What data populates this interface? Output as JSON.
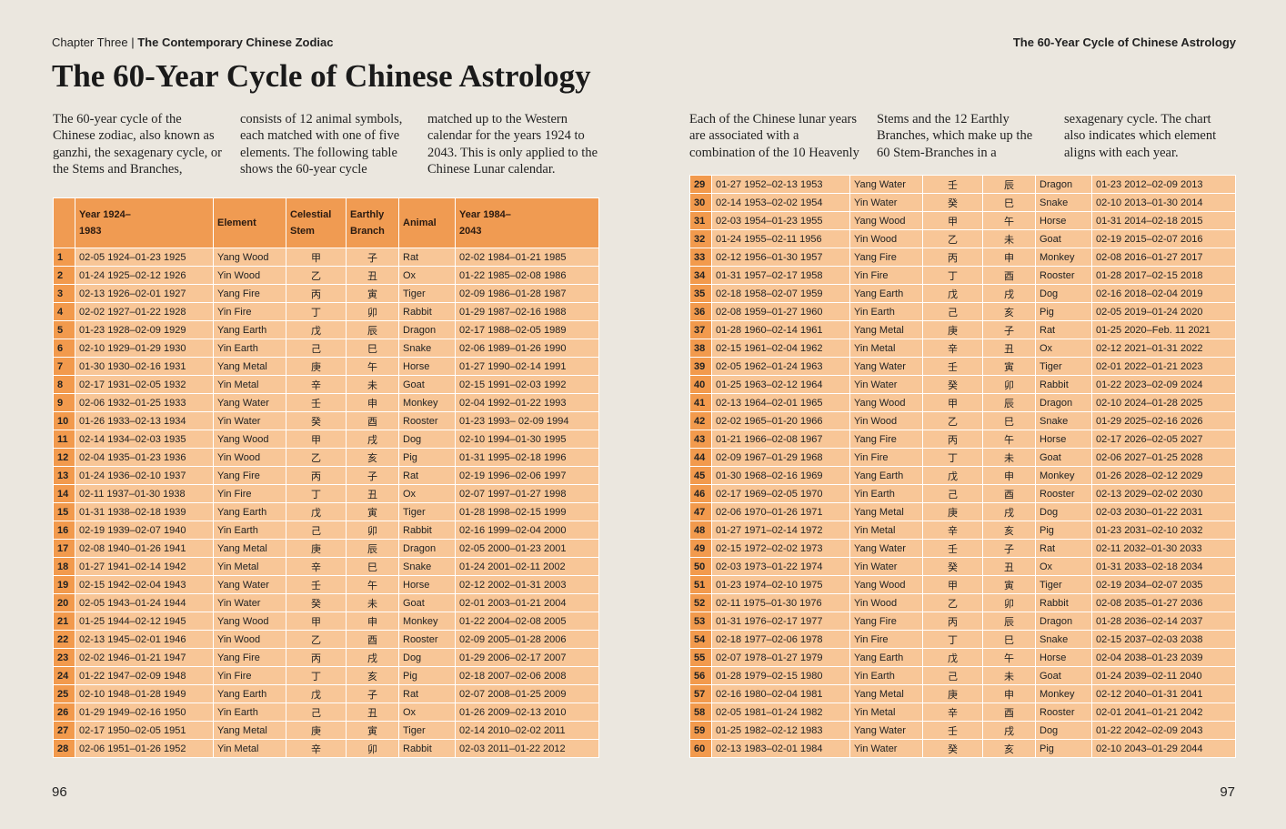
{
  "header": {
    "chapter": "Chapter Three",
    "separator": "|",
    "chapter_title": "The Contemporary Chinese Zodiac",
    "running_title": "The 60-Year Cycle of Chinese Astrology"
  },
  "title": "The 60-Year Cycle of Chinese Astrology",
  "intro_left": "The 60-year cycle of the Chinese zodiac, also known as ganzhi, the sexagenary cycle, or the Stems and Branches, consists of 12 animal symbols, each matched with one of five elements. The following table shows the 60-year cycle matched up to the Western calendar for the years 1924 to 2043. This is only applied to the Chinese Lunar calendar.",
  "intro_right": "Each of the Chinese lunar years are associated with a combination of the 10 Heavenly Stems and the 12 Earthly Branches, which make up the 60 Stem-Branches in a sexagenary cycle. The chart also indicates which element aligns with each year.",
  "table": {
    "header": [
      "Year 1924–1983",
      "Element",
      "Celestial Stem",
      "Earthly Branch",
      "Animal",
      "Year 1984–2043"
    ],
    "rows": [
      [
        "1",
        "02-05 1924–01-23 1925",
        "Yang Wood",
        "甲",
        "子",
        "Rat",
        "02-02 1984–01-21 1985"
      ],
      [
        "2",
        "01-24 1925–02-12 1926",
        "Yin Wood",
        "乙",
        "丑",
        "Ox",
        "01-22 1985–02-08 1986"
      ],
      [
        "3",
        "02-13 1926–02-01 1927",
        "Yang Fire",
        "丙",
        "寅",
        "Tiger",
        "02-09 1986–01-28 1987"
      ],
      [
        "4",
        "02-02 1927–01-22 1928",
        "Yin Fire",
        "丁",
        "卯",
        "Rabbit",
        "01-29 1987–02-16 1988"
      ],
      [
        "5",
        "01-23 1928–02-09 1929",
        "Yang Earth",
        "戊",
        "辰",
        "Dragon",
        "02-17 1988–02-05 1989"
      ],
      [
        "6",
        "02-10 1929–01-29 1930",
        "Yin Earth",
        "己",
        "巳",
        "Snake",
        "02-06 1989–01-26 1990"
      ],
      [
        "7",
        "01-30 1930–02-16 1931",
        "Yang Metal",
        "庚",
        "午",
        "Horse",
        "01-27 1990–02-14 1991"
      ],
      [
        "8",
        "02-17 1931–02-05 1932",
        "Yin Metal",
        "辛",
        "未",
        "Goat",
        "02-15 1991–02-03 1992"
      ],
      [
        "9",
        "02-06 1932–01-25 1933",
        "Yang Water",
        "壬",
        "申",
        "Monkey",
        "02-04 1992–01-22 1993"
      ],
      [
        "10",
        "01-26 1933–02-13 1934",
        "Yin Water",
        "癸",
        "酉",
        "Rooster",
        "01-23 1993– 02-09 1994"
      ],
      [
        "11",
        "02-14 1934–02-03 1935",
        "Yang Wood",
        "甲",
        "戌",
        "Dog",
        "02-10 1994–01-30 1995"
      ],
      [
        "12",
        "02-04 1935–01-23 1936",
        "Yin Wood",
        "乙",
        "亥",
        "Pig",
        "01-31 1995–02-18 1996"
      ],
      [
        "13",
        "01-24 1936–02-10 1937",
        "Yang Fire",
        "丙",
        "子",
        "Rat",
        "02-19 1996–02-06 1997"
      ],
      [
        "14",
        "02-11 1937–01-30 1938",
        "Yin Fire",
        "丁",
        "丑",
        "Ox",
        "02-07 1997–01-27 1998"
      ],
      [
        "15",
        "01-31 1938–02-18 1939",
        "Yang Earth",
        "戊",
        "寅",
        "Tiger",
        "01-28 1998–02-15 1999"
      ],
      [
        "16",
        "02-19 1939–02-07 1940",
        "Yin Earth",
        "己",
        "卯",
        "Rabbit",
        "02-16 1999–02-04 2000"
      ],
      [
        "17",
        "02-08 1940–01-26 1941",
        "Yang Metal",
        "庚",
        "辰",
        "Dragon",
        "02-05 2000–01-23 2001"
      ],
      [
        "18",
        "01-27 1941–02-14 1942",
        "Yin Metal",
        "辛",
        "巳",
        "Snake",
        "01-24 2001–02-11 2002"
      ],
      [
        "19",
        "02-15 1942–02-04 1943",
        "Yang Water",
        "壬",
        "午",
        "Horse",
        "02-12 2002–01-31 2003"
      ],
      [
        "20",
        "02-05 1943–01-24 1944",
        "Yin Water",
        "癸",
        "未",
        "Goat",
        "02-01 2003–01-21 2004"
      ],
      [
        "21",
        "01-25 1944–02-12 1945",
        "Yang Wood",
        "甲",
        "申",
        "Monkey",
        "01-22 2004–02-08 2005"
      ],
      [
        "22",
        "02-13 1945–02-01 1946",
        "Yin Wood",
        "乙",
        "酉",
        "Rooster",
        "02-09 2005–01-28 2006"
      ],
      [
        "23",
        "02-02 1946–01-21 1947",
        "Yang Fire",
        "丙",
        "戌",
        "Dog",
        "01-29 2006–02-17 2007"
      ],
      [
        "24",
        "01-22 1947–02-09 1948",
        "Yin Fire",
        "丁",
        "亥",
        "Pig",
        "02-18 2007–02-06 2008"
      ],
      [
        "25",
        "02-10 1948–01-28 1949",
        "Yang Earth",
        "戊",
        "子",
        "Rat",
        "02-07 2008–01-25 2009"
      ],
      [
        "26",
        "01-29 1949–02-16 1950",
        "Yin Earth",
        "己",
        "丑",
        "Ox",
        "01-26 2009–02-13 2010"
      ],
      [
        "27",
        "02-17 1950–02-05 1951",
        "Yang Metal",
        "庚",
        "寅",
        "Tiger",
        "02-14 2010–02-02 2011"
      ],
      [
        "28",
        "02-06 1951–01-26 1952",
        "Yin Metal",
        "辛",
        "卯",
        "Rabbit",
        "02-03 2011–01-22 2012"
      ],
      [
        "29",
        "01-27 1952–02-13 1953",
        "Yang Water",
        "壬",
        "辰",
        "Dragon",
        "01-23 2012–02-09 2013"
      ],
      [
        "30",
        "02-14 1953–02-02 1954",
        "Yin Water",
        "癸",
        "巳",
        "Snake",
        "02-10 2013–01-30 2014"
      ],
      [
        "31",
        "02-03 1954–01-23 1955",
        "Yang Wood",
        "甲",
        "午",
        "Horse",
        "01-31 2014–02-18 2015"
      ],
      [
        "32",
        "01-24 1955–02-11 1956",
        "Yin Wood",
        "乙",
        "未",
        "Goat",
        "02-19 2015–02-07 2016"
      ],
      [
        "33",
        "02-12 1956–01-30 1957",
        "Yang Fire",
        "丙",
        "申",
        "Monkey",
        "02-08 2016–01-27 2017"
      ],
      [
        "34",
        "01-31 1957–02-17 1958",
        "Yin Fire",
        "丁",
        "酉",
        "Rooster",
        "01-28 2017–02-15 2018"
      ],
      [
        "35",
        "02-18 1958–02-07 1959",
        "Yang Earth",
        "戊",
        "戌",
        "Dog",
        "02-16 2018–02-04 2019"
      ],
      [
        "36",
        "02-08 1959–01-27 1960",
        "Yin Earth",
        "己",
        "亥",
        "Pig",
        "02-05 2019–01-24 2020"
      ],
      [
        "37",
        "01-28 1960–02-14 1961",
        "Yang Metal",
        "庚",
        "子",
        "Rat",
        "01-25 2020–Feb. 11 2021"
      ],
      [
        "38",
        "02-15 1961–02-04 1962",
        "Yin Metal",
        "辛",
        "丑",
        "Ox",
        "02-12 2021–01-31 2022"
      ],
      [
        "39",
        "02-05 1962–01-24 1963",
        "Yang Water",
        "壬",
        "寅",
        "Tiger",
        "02-01 2022–01-21 2023"
      ],
      [
        "40",
        "01-25 1963–02-12 1964",
        "Yin Water",
        "癸",
        "卯",
        "Rabbit",
        "01-22 2023–02-09 2024"
      ],
      [
        "41",
        "02-13 1964–02-01 1965",
        "Yang Wood",
        "甲",
        "辰",
        "Dragon",
        "02-10 2024–01-28 2025"
      ],
      [
        "42",
        "02-02 1965–01-20 1966",
        "Yin Wood",
        "乙",
        "巳",
        "Snake",
        "01-29 2025–02-16 2026"
      ],
      [
        "43",
        "01-21 1966–02-08 1967",
        "Yang Fire",
        "丙",
        "午",
        "Horse",
        "02-17 2026–02-05 2027"
      ],
      [
        "44",
        "02-09 1967–01-29 1968",
        "Yin Fire",
        "丁",
        "未",
        "Goat",
        "02-06 2027–01-25 2028"
      ],
      [
        "45",
        "01-30 1968–02-16 1969",
        "Yang Earth",
        "戊",
        "申",
        "Monkey",
        "01-26 2028–02-12 2029"
      ],
      [
        "46",
        "02-17 1969–02-05 1970",
        "Yin Earth",
        "己",
        "酉",
        "Rooster",
        "02-13 2029–02-02 2030"
      ],
      [
        "47",
        "02-06 1970–01-26 1971",
        "Yang Metal",
        "庚",
        "戌",
        "Dog",
        "02-03 2030–01-22 2031"
      ],
      [
        "48",
        "01-27 1971–02-14 1972",
        "Yin Metal",
        "辛",
        "亥",
        "Pig",
        "01-23 2031–02-10 2032"
      ],
      [
        "49",
        "02-15 1972–02-02 1973",
        "Yang Water",
        "壬",
        "子",
        "Rat",
        "02-11 2032–01-30 2033"
      ],
      [
        "50",
        "02-03 1973–01-22 1974",
        "Yin Water",
        "癸",
        "丑",
        "Ox",
        "01-31 2033–02-18 2034"
      ],
      [
        "51",
        "01-23 1974–02-10 1975",
        "Yang Wood",
        "甲",
        "寅",
        "Tiger",
        "02-19 2034–02-07 2035"
      ],
      [
        "52",
        "02-11 1975–01-30 1976",
        "Yin Wood",
        "乙",
        "卯",
        "Rabbit",
        "02-08 2035–01-27 2036"
      ],
      [
        "53",
        "01-31 1976–02-17 1977",
        "Yang Fire",
        "丙",
        "辰",
        "Dragon",
        "01-28 2036–02-14 2037"
      ],
      [
        "54",
        "02-18 1977–02-06 1978",
        "Yin Fire",
        "丁",
        "巳",
        "Snake",
        "02-15 2037–02-03 2038"
      ],
      [
        "55",
        "02-07 1978–01-27 1979",
        "Yang Earth",
        "戊",
        "午",
        "Horse",
        "02-04 2038–01-23 2039"
      ],
      [
        "56",
        "01-28 1979–02-15 1980",
        "Yin Earth",
        "己",
        "未",
        "Goat",
        "01-24 2039–02-11 2040"
      ],
      [
        "57",
        "02-16 1980–02-04 1981",
        "Yang Metal",
        "庚",
        "申",
        "Monkey",
        "02-12 2040–01-31 2041"
      ],
      [
        "58",
        "02-05 1981–01-24 1982",
        "Yin Metal",
        "辛",
        "酉",
        "Rooster",
        "02-01 2041–01-21 2042"
      ],
      [
        "59",
        "01-25 1982–02-12 1983",
        "Yang Water",
        "壬",
        "戌",
        "Dog",
        "01-22 2042–02-09 2043"
      ],
      [
        "60",
        "02-13 1983–02-01 1984",
        "Yin Water",
        "癸",
        "亥",
        "Pig",
        "02-10 2043–01-29 2044"
      ]
    ]
  },
  "page_numbers": [
    "96",
    "97"
  ]
}
